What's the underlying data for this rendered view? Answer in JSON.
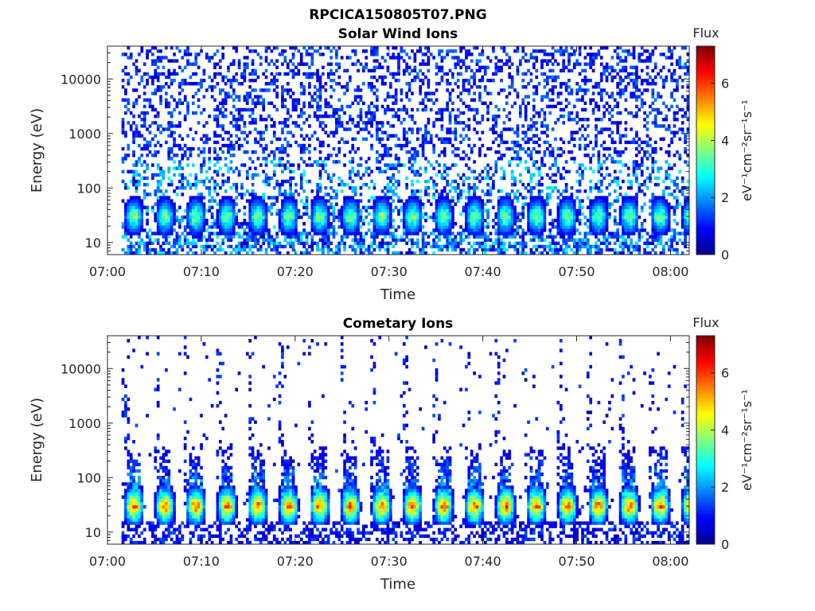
{
  "figure_title": "RPCICA150805T07.PNG",
  "colors": {
    "colormap": [
      "#00008f",
      "#0000ff",
      "#0080ff",
      "#00ffff",
      "#80ff80",
      "#ffff00",
      "#ff8000",
      "#ff0000",
      "#800000"
    ],
    "axis": "#262626",
    "background": "#ffffff"
  },
  "chart_data": [
    {
      "type": "heatmap",
      "title": "Solar Wind Ions",
      "xlabel": "Time",
      "ylabel": "Energy (eV)",
      "x_ticks": [
        "07:00",
        "07:10",
        "07:20",
        "07:30",
        "07:40",
        "07:50",
        "08:00"
      ],
      "xlim": [
        "07:00",
        "08:02"
      ],
      "y_scale": "log",
      "y_ticks": [
        10,
        100,
        1000,
        10000
      ],
      "y_tick_labels": [
        "10",
        "100",
        "1000",
        "10000"
      ],
      "ylim": [
        6,
        40000
      ],
      "data_start": "07:01:30",
      "data_end": "08:02",
      "colorbar": {
        "title": "Flux",
        "label": "eV⁻¹cm⁻²sr⁻¹s⁻¹",
        "range": [
          0,
          7.3
        ],
        "ticks": [
          0,
          2,
          4,
          6
        ]
      },
      "scan_period_min": 3.3,
      "peak_energy_ev": 30,
      "peak_flux": 4.5,
      "background": "sparse low flux (1-3) across 10 eV to 30 keV"
    },
    {
      "type": "heatmap",
      "title": "Cometary Ions",
      "xlabel": "Time",
      "ylabel": "Energy (eV)",
      "x_ticks": [
        "07:00",
        "07:10",
        "07:20",
        "07:30",
        "07:40",
        "07:50",
        "08:00"
      ],
      "xlim": [
        "07:00",
        "08:02"
      ],
      "y_scale": "log",
      "y_ticks": [
        10,
        100,
        1000,
        10000
      ],
      "y_tick_labels": [
        "10",
        "100",
        "1000",
        "10000"
      ],
      "ylim": [
        6,
        40000
      ],
      "data_start": "07:01:30",
      "data_end": "08:02",
      "colorbar": {
        "title": "Flux",
        "label": "eV⁻¹cm⁻²sr⁻¹s⁻¹",
        "range": [
          0,
          7.3
        ],
        "ticks": [
          0,
          2,
          4,
          6
        ]
      },
      "scan_period_min": 3.3,
      "peak_energy_ev": 30,
      "peak_flux": 6.8,
      "background": "sparse vertical stripes of low flux (1) up to 10 keV at each scan"
    }
  ]
}
